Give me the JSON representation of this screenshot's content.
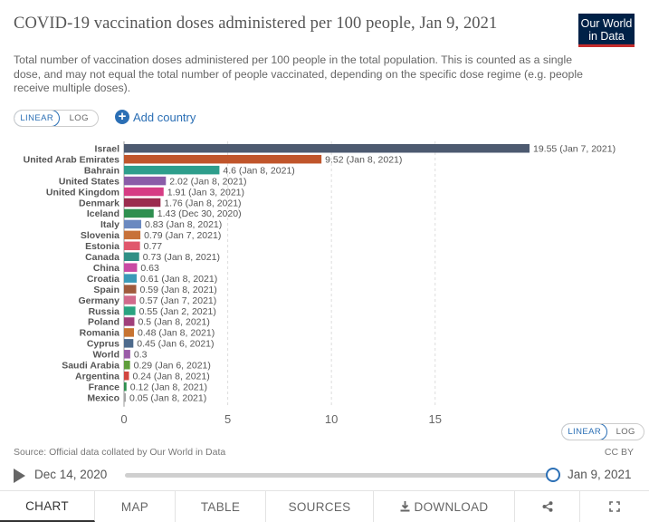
{
  "title": "COVID-19 vaccination doses administered per 100 people, Jan 9, 2021",
  "subtitle": "Total number of vaccination doses administered per 100 people in the total population. This is counted as a single dose, and may not equal the total number of people vaccinated, depending on the specific dose regime (e.g. people receive multiple doses).",
  "logo": {
    "line1": "Our World",
    "line2": "in Data"
  },
  "scale_toggle": {
    "linear": "LINEAR",
    "log": "LOG",
    "selected": "linear"
  },
  "add_country": "Add country",
  "chart_data": {
    "type": "bar",
    "orientation": "horizontal",
    "categories": [
      "Israel",
      "United Arab Emirates",
      "Bahrain",
      "United States",
      "United Kingdom",
      "Denmark",
      "Iceland",
      "Italy",
      "Slovenia",
      "Estonia",
      "Canada",
      "China",
      "Croatia",
      "Spain",
      "Germany",
      "Russia",
      "Poland",
      "Romania",
      "Cyprus",
      "World",
      "Saudi Arabia",
      "Argentina",
      "France",
      "Mexico"
    ],
    "values": [
      19.55,
      9.52,
      4.6,
      2.02,
      1.91,
      1.76,
      1.43,
      0.83,
      0.79,
      0.77,
      0.73,
      0.63,
      0.61,
      0.59,
      0.57,
      0.55,
      0.5,
      0.48,
      0.45,
      0.3,
      0.29,
      0.24,
      0.12,
      0.05
    ],
    "value_labels": [
      "19.55 (Jan 7, 2021)",
      "9.52 (Jan 8, 2021)",
      "4.6 (Jan 8, 2021)",
      "2.02 (Jan 8, 2021)",
      "1.91 (Jan 3, 2021)",
      "1.76 (Jan 8, 2021)",
      "1.43 (Dec 30, 2020)",
      "0.83 (Jan 8, 2021)",
      "0.79 (Jan 7, 2021)",
      "0.77",
      "0.73 (Jan 8, 2021)",
      "0.63",
      "0.61 (Jan 8, 2021)",
      "0.59 (Jan 8, 2021)",
      "0.57 (Jan 7, 2021)",
      "0.55 (Jan 2, 2021)",
      "0.5 (Jan 8, 2021)",
      "0.48 (Jan 8, 2021)",
      "0.45 (Jan 6, 2021)",
      "0.3",
      "0.29 (Jan 6, 2021)",
      "0.24 (Jan 8, 2021)",
      "0.12 (Jan 8, 2021)",
      "0.05 (Jan 8, 2021)"
    ],
    "colors": [
      "#4d5a70",
      "#c0552b",
      "#2e9e8c",
      "#8a5ca8",
      "#d63c84",
      "#9b2c4e",
      "#2e8f4f",
      "#6a89c0",
      "#c7713a",
      "#e0576c",
      "#2f8f85",
      "#c94aa3",
      "#3a9ab8",
      "#a05a3c",
      "#d16a8c",
      "#2aa380",
      "#a03f7a",
      "#c77432",
      "#4d6a8c",
      "#9a5ca8",
      "#5f9e3c",
      "#d1453f",
      "#2e8f4f",
      "#a6a6a6"
    ],
    "x_ticks": [
      0,
      5,
      10,
      15
    ],
    "xlim": [
      0,
      19.55
    ],
    "grid": true
  },
  "source": "Source: Official data collated by Our World in Data",
  "license": "CC BY",
  "timeline": {
    "start": "Dec 14, 2020",
    "end": "Jan 9, 2021",
    "progress": 1.0
  },
  "tabs": [
    {
      "label": "CHART",
      "active": true
    },
    {
      "label": "MAP"
    },
    {
      "label": "TABLE"
    },
    {
      "label": "SOURCES"
    },
    {
      "label": "DOWNLOAD"
    }
  ],
  "icons": {
    "download": "download-icon",
    "share": "share-icon",
    "fullscreen": "fullscreen-icon",
    "play": "play-icon",
    "add": "plus-icon"
  }
}
